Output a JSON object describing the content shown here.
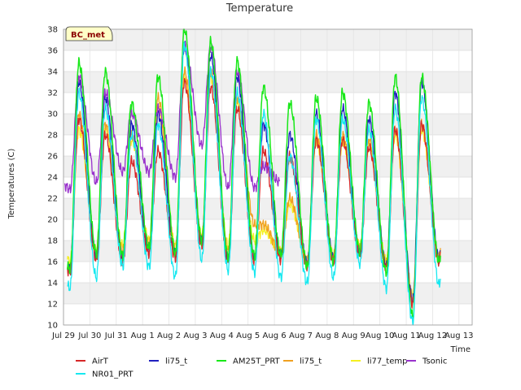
{
  "chart_data": {
    "type": "line",
    "title": "Temperature",
    "xlabel": "Time",
    "ylabel": "Temperatures (C)",
    "badge": "BC_met",
    "ylim": [
      10,
      38
    ],
    "yticks": [
      10,
      12,
      14,
      16,
      18,
      20,
      22,
      24,
      26,
      28,
      30,
      32,
      34,
      36,
      38
    ],
    "xlim": [
      0,
      15.5
    ],
    "xticks": [
      {
        "v": 0,
        "label": "Jul 29"
      },
      {
        "v": 1,
        "label": "Jul 30"
      },
      {
        "v": 2,
        "label": "Jul 31"
      },
      {
        "v": 3,
        "label": "Aug 1"
      },
      {
        "v": 4,
        "label": "Aug 2"
      },
      {
        "v": 5,
        "label": "Aug 3"
      },
      {
        "v": 6,
        "label": "Aug 4"
      },
      {
        "v": 7,
        "label": "Aug 5"
      },
      {
        "v": 8,
        "label": "Aug 6"
      },
      {
        "v": 9,
        "label": "Aug 7"
      },
      {
        "v": 10,
        "label": "Aug 8"
      },
      {
        "v": 11,
        "label": "Aug 9"
      },
      {
        "v": 12,
        "label": "Aug 10"
      },
      {
        "v": 13,
        "label": "Aug 11"
      },
      {
        "v": 14,
        "label": "Aug 12"
      },
      {
        "v": 15,
        "label": "Aug 13"
      }
    ],
    "grid": true,
    "legend_position": "bottom",
    "daily": {
      "start": 0.15,
      "end": 14.3,
      "days": [
        0,
        1,
        2,
        3,
        4,
        5,
        6,
        7,
        8,
        9,
        10,
        11,
        12,
        13,
        14
      ],
      "ampm": 0.58
    },
    "series": [
      {
        "name": "AirT",
        "color": "#d62728",
        "width": 1.3,
        "mins": [
          15.0,
          16.2,
          16.0,
          16.8,
          16.4,
          17.5,
          16.0,
          16.0,
          16.2,
          15.6,
          16.0,
          16.6,
          15.4,
          12.0,
          16.0
        ],
        "maxs": [
          29.5,
          28.0,
          25.5,
          26.5,
          33.0,
          32.5,
          30.5,
          26.5,
          26.0,
          27.5,
          27.5,
          26.8,
          28.5,
          29.0,
          29.0
        ]
      },
      {
        "name": "NR01_PRT",
        "color": "#17e8f0",
        "width": 1.3,
        "mins": [
          13.5,
          14.5,
          15.6,
          15.5,
          14.6,
          16.2,
          15.2,
          15.0,
          14.5,
          14.0,
          14.5,
          15.8,
          13.5,
          10.3,
          13.8
        ],
        "maxs": [
          32.0,
          30.5,
          28.0,
          29.0,
          36.5,
          34.0,
          32.0,
          30.0,
          26.0,
          29.5,
          29.5,
          28.5,
          30.5,
          31.5,
          31.5
        ]
      },
      {
        "name": "li75_t",
        "color": "#1f1fbf",
        "width": 1.3,
        "mins": [
          15.2,
          16.5,
          16.3,
          17.0,
          16.6,
          17.8,
          16.3,
          16.3,
          16.4,
          15.8,
          16.2,
          16.8,
          15.6,
          12.3,
          16.2
        ],
        "maxs": [
          33.0,
          31.5,
          29.0,
          30.0,
          36.5,
          35.5,
          33.5,
          29.0,
          28.0,
          30.0,
          30.5,
          29.5,
          32.0,
          33.0,
          32.5
        ]
      },
      {
        "name": "AM25T_PRT",
        "color": "#18e818",
        "width": 1.5,
        "mins": [
          15.3,
          16.8,
          16.5,
          17.3,
          16.8,
          18.0,
          16.5,
          16.5,
          16.6,
          15.5,
          16.0,
          17.0,
          15.0,
          10.8,
          16.0
        ],
        "maxs": [
          34.8,
          34.0,
          31.0,
          33.5,
          38.0,
          36.8,
          35.0,
          32.5,
          31.0,
          31.5,
          32.0,
          31.0,
          33.5,
          33.5,
          33.5
        ]
      },
      {
        "name": "li75_t",
        "color": "#f0a020",
        "width": 1.3,
        "mins": [
          15.4,
          16.6,
          17.0,
          17.5,
          17.0,
          18.2,
          17.0,
          19.5,
          16.8,
          16.0,
          16.4,
          17.2,
          15.8,
          12.5,
          16.3
        ],
        "maxs": [
          30.0,
          29.0,
          28.0,
          31.5,
          34.0,
          34.0,
          31.5,
          19.5,
          22.0,
          28.0,
          28.0,
          27.5,
          28.5,
          29.0,
          29.0
        ]
      },
      {
        "name": "li77_temp",
        "color": "#f5f020",
        "width": 1.3,
        "mins": [
          16.0,
          17.0,
          17.5,
          18.0,
          17.5,
          18.5,
          17.5,
          18.0,
          17.0,
          16.2,
          16.6,
          17.4,
          16.0,
          12.8,
          16.5
        ],
        "maxs": [
          28.5,
          28.5,
          27.5,
          30.5,
          33.5,
          33.5,
          31.0,
          19.0,
          21.5,
          27.5,
          27.5,
          27.0,
          28.0,
          28.5,
          28.5
        ]
      },
      {
        "name": "Tsonic",
        "color": "#9932cc",
        "width": 1.3,
        "start": 0.05,
        "end": 8.2,
        "mins": [
          22.8,
          23.5,
          24.5,
          24.5,
          24.0,
          27.0,
          23.0,
          23.0,
          23.5
        ],
        "maxs": [
          33.5,
          32.0,
          30.0,
          30.5,
          36.5,
          36.3,
          34.0,
          25.0,
          26.5
        ]
      }
    ]
  }
}
